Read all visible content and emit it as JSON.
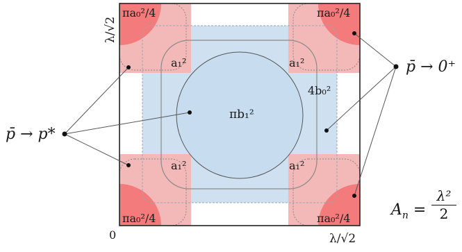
{
  "labels": {
    "corner_area": "πa₀²/4",
    "square_area": "a₁²",
    "circle_area": "πb₁²",
    "inner_square_area": "4b₀²",
    "axis_origin": "0",
    "axis_x_end": "λ/√2",
    "axis_y_end": "λ/√2",
    "limit_left": "p̄ → p*",
    "limit_right": "p̄ → 0⁺",
    "area_formula_lhs": "A",
    "area_formula_sub": "n",
    "area_formula_eq": "=",
    "area_formula_num": "λ²",
    "area_formula_den": "2"
  },
  "colors": {
    "corner_fill": "#f37b7b",
    "pink_band": "#f6c6c6",
    "blue_band": "#cfe0f1",
    "circle_fill": "#c7ddef",
    "frame": "#222222",
    "dashed": "#777777"
  }
}
